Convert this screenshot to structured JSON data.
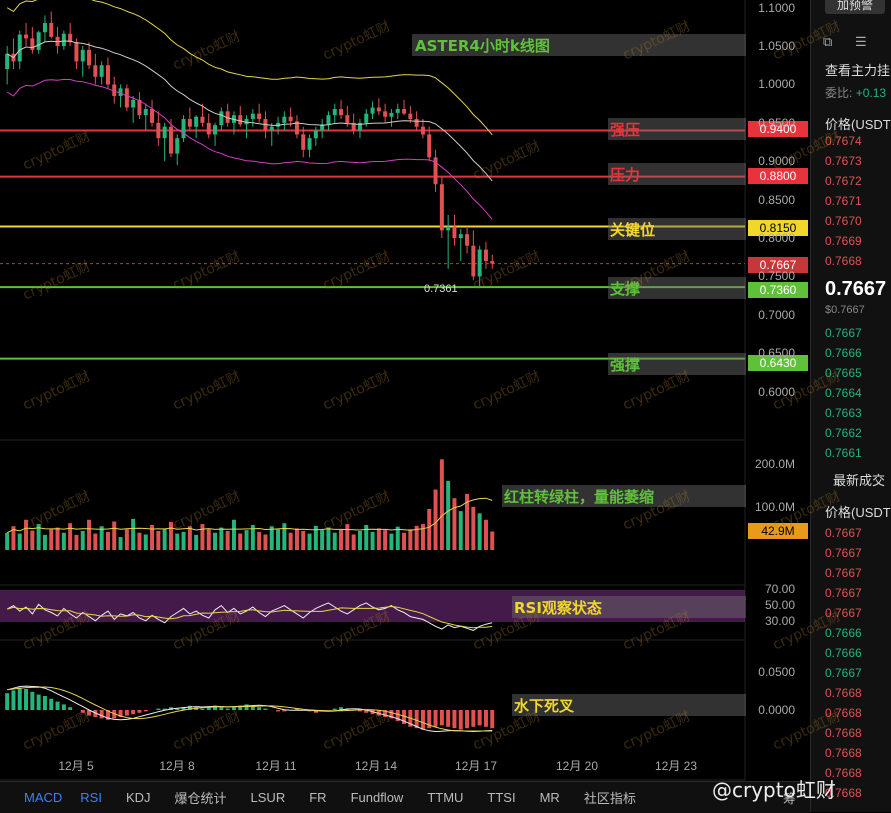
{
  "annotations": {
    "title": "ASTER4小时k线图",
    "strong_resistance": "强压",
    "resistance": "压力",
    "key_level": "关键位",
    "support": "支撑",
    "strong_support": "强撑",
    "volume_note": "红柱转绿柱，量能萎缩",
    "rsi_note": "RSI观察状态",
    "macd_note": "水下死叉"
  },
  "levels": {
    "strong_resistance": "0.9400",
    "resistance": "0.8800",
    "key_level": "0.8150",
    "current": "0.7667",
    "support": "0.7360",
    "strong_support": "0.6430",
    "low_marker": "0.7361"
  },
  "price_axis": [
    "1.1000",
    "1.0500",
    "1.0000",
    "0.9500",
    "0.9000",
    "0.8500",
    "0.8000",
    "0.7500",
    "0.7000",
    "0.6500",
    "0.6000"
  ],
  "volume_axis": [
    "200.0M",
    "100.0M",
    "42.9M"
  ],
  "rsi_axis": [
    "70.00",
    "50.00",
    "30.00"
  ],
  "macd_axis": [
    "0.0500",
    "0.0000"
  ],
  "date_axis": [
    "12月 5",
    "12月 8",
    "12月 11",
    "12月 14",
    "12月 17",
    "12月 20",
    "12月 23"
  ],
  "toolbar": {
    "tabs": [
      "MACD",
      "RSI",
      "KDJ",
      "爆仓统计",
      "LSUR",
      "FR",
      "Fundflow",
      "TTMU",
      "TTSI",
      "MR",
      "社区指标"
    ],
    "right_label": "筹"
  },
  "side_panel": {
    "button": "加预警",
    "main_force": "查看主力挂",
    "ratio_label": "委比:",
    "ratio_value": "+0.13",
    "price_header": "价格(USDT",
    "asks": [
      "0.7674",
      "0.7673",
      "0.7672",
      "0.7671",
      "0.7670",
      "0.7669",
      "0.7668"
    ],
    "last_price": "0.7667",
    "last_price_usd": "$0.7667",
    "bids": [
      "0.7667",
      "0.7666",
      "0.7665",
      "0.7664",
      "0.7663",
      "0.7662",
      "0.7661"
    ],
    "trades_header": "最新成交",
    "trades_price_header": "价格(USDT",
    "trades": [
      "0.7667",
      "0.7667",
      "0.7667",
      "0.7667",
      "0.7667",
      "0.7666",
      "0.7666",
      "0.7667",
      "0.7668",
      "0.7668",
      "0.7668",
      "0.7668",
      "0.7668",
      "0.7668"
    ]
  },
  "watermark": "crypto虹财",
  "brand": "@crypto虹财",
  "colors": {
    "up": "#25b47a",
    "down": "#e05252",
    "resistance": "#e8323c",
    "key": "#f2d72b",
    "support": "#5fc13a",
    "rsi_band": "#7b2f86"
  },
  "chart_data": {
    "type": "candlestick",
    "symbol": "ASTER",
    "interval": "4h",
    "ylim": [
      0.55,
      1.11
    ],
    "x_ticks": [
      "12月 5",
      "12月 8",
      "12月 11",
      "12月 14",
      "12月 17",
      "12月 20",
      "12月 23"
    ],
    "candles": [
      [
        1.02,
        1.05,
        1.0,
        1.04
      ],
      [
        1.04,
        1.06,
        1.02,
        1.03
      ],
      [
        1.03,
        1.07,
        1.02,
        1.065
      ],
      [
        1.065,
        1.08,
        1.05,
        1.06
      ],
      [
        1.06,
        1.075,
        1.04,
        1.045
      ],
      [
        1.045,
        1.07,
        1.04,
        1.068
      ],
      [
        1.068,
        1.09,
        1.055,
        1.08
      ],
      [
        1.08,
        1.095,
        1.06,
        1.062
      ],
      [
        1.062,
        1.075,
        1.04,
        1.05
      ],
      [
        1.05,
        1.07,
        1.045,
        1.066
      ],
      [
        1.066,
        1.08,
        1.05,
        1.055
      ],
      [
        1.055,
        1.06,
        1.02,
        1.03
      ],
      [
        1.03,
        1.05,
        1.01,
        1.045
      ],
      [
        1.045,
        1.055,
        1.02,
        1.025
      ],
      [
        1.025,
        1.04,
        1.0,
        1.01
      ],
      [
        1.01,
        1.03,
        1.0,
        1.025
      ],
      [
        1.025,
        1.035,
        0.995,
        1.0
      ],
      [
        1.0,
        1.01,
        0.975,
        0.985
      ],
      [
        0.985,
        1.0,
        0.97,
        0.995
      ],
      [
        0.995,
        1.0,
        0.965,
        0.97
      ],
      [
        0.97,
        0.985,
        0.95,
        0.98
      ],
      [
        0.98,
        0.99,
        0.955,
        0.96
      ],
      [
        0.96,
        0.975,
        0.94,
        0.968
      ],
      [
        0.968,
        0.98,
        0.945,
        0.95
      ],
      [
        0.95,
        0.965,
        0.92,
        0.93
      ],
      [
        0.93,
        0.95,
        0.9,
        0.945
      ],
      [
        0.945,
        0.955,
        0.905,
        0.91
      ],
      [
        0.91,
        0.935,
        0.895,
        0.93
      ],
      [
        0.93,
        0.96,
        0.925,
        0.955
      ],
      [
        0.955,
        0.97,
        0.94,
        0.945
      ],
      [
        0.945,
        0.96,
        0.93,
        0.958
      ],
      [
        0.958,
        0.975,
        0.945,
        0.95
      ],
      [
        0.95,
        0.962,
        0.93,
        0.935
      ],
      [
        0.935,
        0.95,
        0.92,
        0.947
      ],
      [
        0.947,
        0.97,
        0.94,
        0.965
      ],
      [
        0.965,
        0.975,
        0.945,
        0.95
      ],
      [
        0.95,
        0.965,
        0.935,
        0.96
      ],
      [
        0.96,
        0.972,
        0.945,
        0.948
      ],
      [
        0.948,
        0.96,
        0.93,
        0.955
      ],
      [
        0.955,
        0.968,
        0.945,
        0.962
      ],
      [
        0.962,
        0.975,
        0.95,
        0.955
      ],
      [
        0.955,
        0.965,
        0.93,
        0.94
      ],
      [
        0.94,
        0.95,
        0.92,
        0.945
      ],
      [
        0.945,
        0.958,
        0.935,
        0.95
      ],
      [
        0.95,
        0.965,
        0.94,
        0.958
      ],
      [
        0.958,
        0.97,
        0.945,
        0.952
      ],
      [
        0.952,
        0.96,
        0.93,
        0.935
      ],
      [
        0.935,
        0.945,
        0.905,
        0.915
      ],
      [
        0.915,
        0.935,
        0.905,
        0.93
      ],
      [
        0.93,
        0.945,
        0.92,
        0.94
      ],
      [
        0.94,
        0.955,
        0.93,
        0.948
      ],
      [
        0.948,
        0.965,
        0.94,
        0.96
      ],
      [
        0.96,
        0.975,
        0.95,
        0.968
      ],
      [
        0.968,
        0.98,
        0.955,
        0.96
      ],
      [
        0.96,
        0.972,
        0.945,
        0.95
      ],
      [
        0.95,
        0.962,
        0.935,
        0.94
      ],
      [
        0.94,
        0.955,
        0.93,
        0.95
      ],
      [
        0.95,
        0.968,
        0.945,
        0.962
      ],
      [
        0.962,
        0.978,
        0.955,
        0.97
      ],
      [
        0.97,
        0.982,
        0.96,
        0.965
      ],
      [
        0.965,
        0.975,
        0.95,
        0.958
      ],
      [
        0.958,
        0.968,
        0.945,
        0.963
      ],
      [
        0.963,
        0.975,
        0.955,
        0.968
      ],
      [
        0.968,
        0.98,
        0.96,
        0.962
      ],
      [
        0.962,
        0.972,
        0.95,
        0.955
      ],
      [
        0.955,
        0.965,
        0.94,
        0.945
      ],
      [
        0.945,
        0.955,
        0.93,
        0.935
      ],
      [
        0.935,
        0.945,
        0.9,
        0.905
      ],
      [
        0.905,
        0.915,
        0.86,
        0.87
      ],
      [
        0.87,
        0.88,
        0.8,
        0.81
      ],
      [
        0.81,
        0.83,
        0.76,
        0.815
      ],
      [
        0.815,
        0.83,
        0.79,
        0.8
      ],
      [
        0.8,
        0.812,
        0.77,
        0.805
      ],
      [
        0.805,
        0.815,
        0.78,
        0.79
      ],
      [
        0.79,
        0.81,
        0.745,
        0.75
      ],
      [
        0.75,
        0.79,
        0.736,
        0.785
      ],
      [
        0.785,
        0.795,
        0.76,
        0.77
      ],
      [
        0.77,
        0.778,
        0.76,
        0.7667
      ]
    ],
    "volume": [
      40,
      55,
      38,
      70,
      45,
      60,
      35,
      48,
      52,
      40,
      62,
      35,
      44,
      70,
      38,
      55,
      42,
      66,
      30,
      48,
      72,
      40,
      36,
      58,
      44,
      50,
      65,
      38,
      42,
      55,
      35,
      60,
      48,
      40,
      52,
      44,
      70,
      38,
      46,
      58,
      42,
      36,
      55,
      48,
      62,
      40,
      50,
      44,
      38,
      56,
      46,
      52,
      40,
      48,
      60,
      36,
      44,
      58,
      42,
      50,
      46,
      38,
      54,
      40,
      48,
      56,
      60,
      95,
      140,
      210,
      160,
      120,
      90,
      130,
      100,
      85,
      70,
      42.9
    ],
    "rsi": [
      55,
      60,
      52,
      58,
      48,
      62,
      54,
      50,
      45,
      56,
      48,
      42,
      50,
      44,
      38,
      46,
      52,
      40,
      48,
      45,
      50,
      42,
      38,
      46,
      40,
      35,
      44,
      50,
      56,
      48,
      52,
      46,
      42,
      54,
      60,
      50,
      56,
      48,
      52,
      58,
      50,
      44,
      52,
      56,
      60,
      54,
      48,
      42,
      50,
      56,
      60,
      64,
      58,
      52,
      48,
      54,
      60,
      64,
      58,
      54,
      56,
      60,
      54,
      50,
      44,
      42,
      40,
      35,
      30,
      26,
      32,
      28,
      30,
      27,
      24,
      30,
      33,
      35
    ],
    "macd_hist": [
      0.012,
      0.014,
      0.016,
      0.015,
      0.013,
      0.011,
      0.01,
      0.008,
      0.006,
      0.004,
      0.002,
      0.0,
      -0.002,
      -0.004,
      -0.005,
      -0.006,
      -0.007,
      -0.006,
      -0.005,
      -0.004,
      -0.003,
      -0.002,
      -0.001,
      0.0,
      0.001,
      0.001,
      0.002,
      0.001,
      0.002,
      0.003,
      0.002,
      0.001,
      0.002,
      0.003,
      0.002,
      0.001,
      0.002,
      0.003,
      0.004,
      0.003,
      0.002,
      0.001,
      0.0,
      -0.001,
      -0.001,
      0.0,
      0.001,
      0.0,
      -0.001,
      -0.002,
      -0.001,
      0.0,
      0.001,
      0.002,
      0.001,
      0.0,
      -0.001,
      -0.002,
      -0.003,
      -0.004,
      -0.005,
      -0.006,
      -0.008,
      -0.01,
      -0.012,
      -0.013,
      -0.014,
      -0.013,
      -0.012,
      -0.011,
      -0.012,
      -0.013,
      -0.014,
      -0.013,
      -0.012,
      -0.011,
      -0.012,
      -0.013
    ],
    "levels": [
      0.94,
      0.88,
      0.815,
      0.736,
      0.643
    ]
  }
}
